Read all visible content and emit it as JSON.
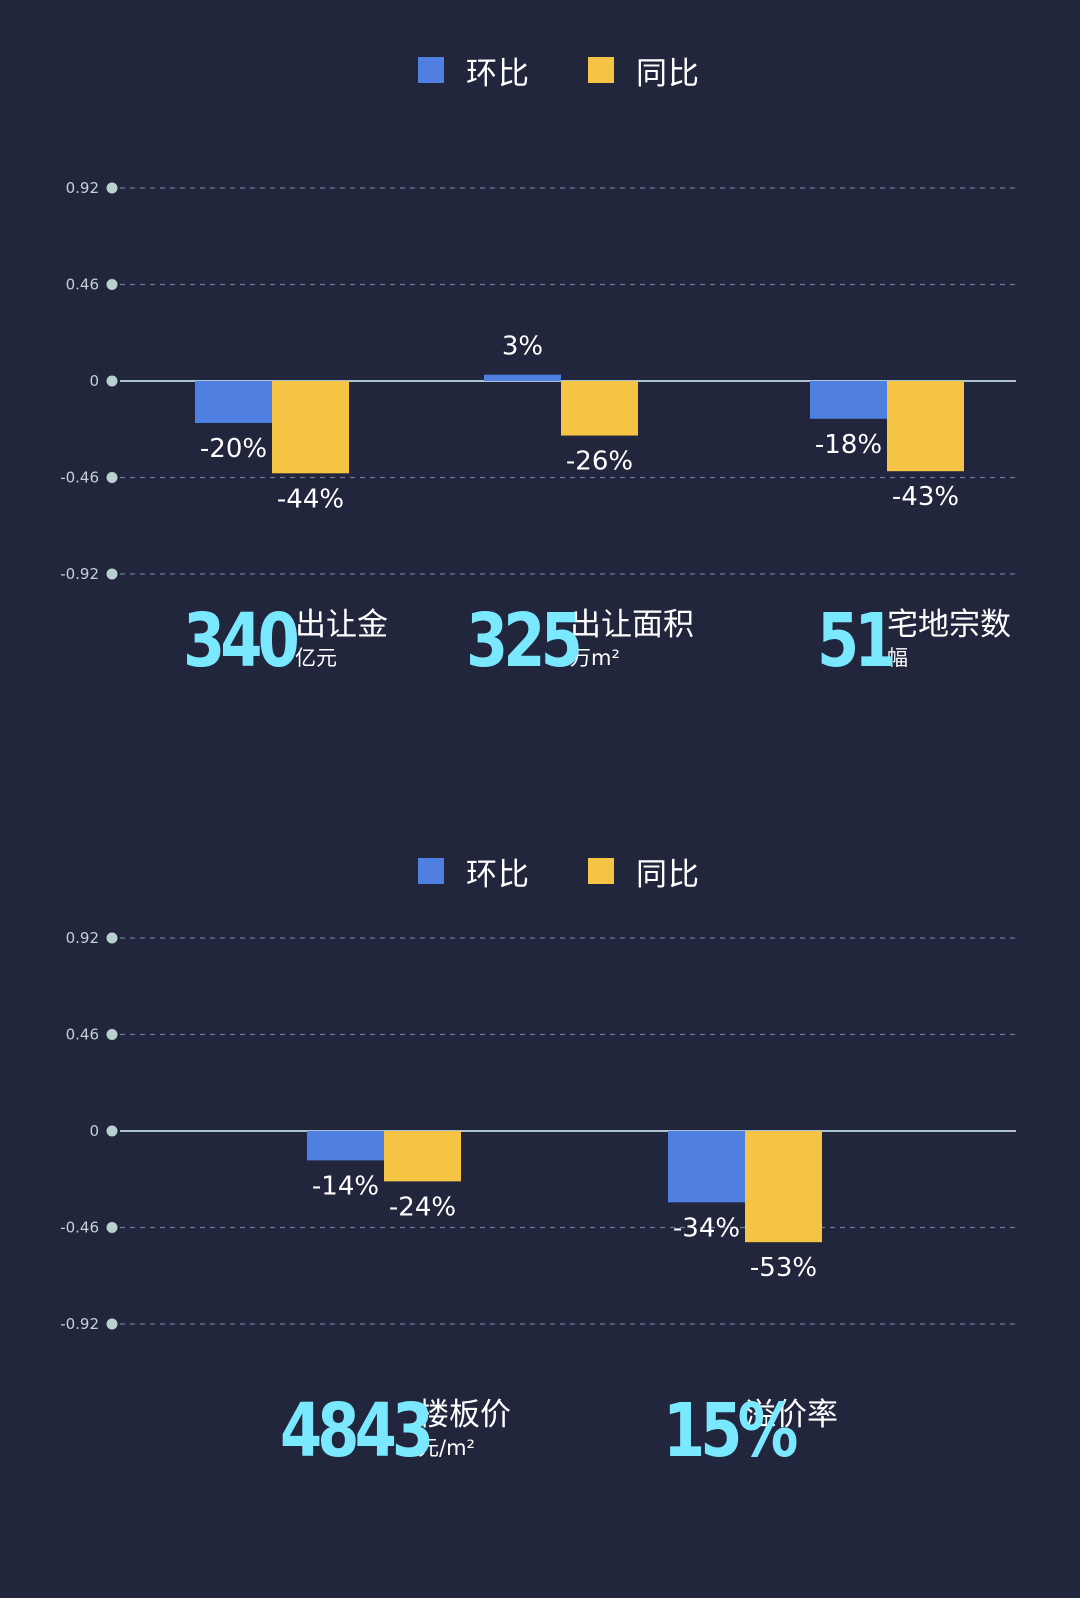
{
  "colors": {
    "background": "#22263d",
    "mom": "#4f7fe0",
    "yoy": "#f6c444",
    "accent": "#7ae8ff",
    "axis": "#a9c4d0",
    "grid": "#6f7a95"
  },
  "chart_data": [
    {
      "type": "bar",
      "categories": [
        "出让金",
        "出让面积",
        "宅地宗数"
      ],
      "series": [
        {
          "name": "环比",
          "values": [
            -0.2,
            0.03,
            -0.18
          ],
          "labels": [
            "-20%",
            "3%",
            "-18%"
          ]
        },
        {
          "name": "同比",
          "values": [
            -0.44,
            -0.26,
            -0.43
          ],
          "labels": [
            "-44%",
            "-26%",
            "-43%"
          ]
        }
      ],
      "yticks": [
        "0.92",
        "0.46",
        "0",
        "-0.46",
        "-0.92"
      ],
      "ylim": [
        -0.92,
        0.92
      ],
      "grid": true,
      "legend": "top-center"
    },
    {
      "type": "bar",
      "categories": [
        "楼板价",
        "溢价率"
      ],
      "series": [
        {
          "name": "环比",
          "values": [
            -0.14,
            -0.34
          ],
          "labels": [
            "-14%",
            "-34%"
          ]
        },
        {
          "name": "同比",
          "values": [
            -0.24,
            -0.53
          ],
          "labels": [
            "-24%",
            "-53%"
          ]
        }
      ],
      "yticks": [
        "0.92",
        "0.46",
        "0",
        "-0.46",
        "-0.92"
      ],
      "ylim": [
        -0.92,
        0.92
      ],
      "grid": true,
      "legend": "top-center"
    }
  ],
  "stats1": [
    {
      "value": "340",
      "label": "出让金",
      "unit": "亿元"
    },
    {
      "value": "325",
      "label": "出让面积",
      "unit": "万m²"
    },
    {
      "value": "51",
      "label": "宅地宗数",
      "unit": "幅"
    }
  ],
  "stats2": [
    {
      "value": "4843",
      "label": "楼板价",
      "unit": "元/m²"
    },
    {
      "value": "15%",
      "label": "溢价率",
      "unit": ""
    }
  ]
}
